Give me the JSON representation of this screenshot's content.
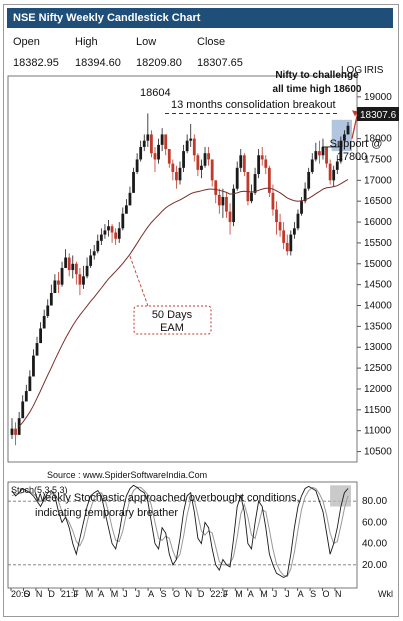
{
  "title": "NSE Nifty Weekly Candlestick Chart",
  "ohlc_header": {
    "labels": [
      "Open",
      "High",
      "Low",
      "Close"
    ],
    "values": [
      "18382.95",
      "18394.60",
      "18209.80",
      "18307.65"
    ]
  },
  "corner_labels": {
    "log": "LOG",
    "iris": "IRIS",
    "wkl": "Wkl"
  },
  "last_price_tag": "18307.6",
  "annotations": {
    "peak_value": "18604",
    "consolidation": "13 months consolidation breakout",
    "challenge_line1": "Nifty to challenge",
    "challenge_line2": "all time high 18600",
    "support_line1": "Support @",
    "support_line2": "17800",
    "ema_line1": "50 Days",
    "ema_line2": "EAM",
    "source": "Source : www.SpiderSoftwareIndia.Com",
    "stoch_label": "Stoch(5,3,5,3)",
    "stoch_note_line1": "Weekly Stochastic approached overbought conditions,",
    "stoch_note_line2": "indicating temporary breather"
  },
  "colors": {
    "up": "#1a1a1a",
    "down": "#c0392b",
    "ema": "#7b2c2c",
    "title_bg": "#1f4e79",
    "highlight": "#9db7d6",
    "arrow": "#c0392b"
  },
  "chart_data": {
    "type": "candlestick",
    "title": "NSE Nifty Weekly Candlestick Chart",
    "y_ticks": [
      10500,
      11000,
      11500,
      12000,
      12500,
      13000,
      13500,
      14000,
      14500,
      15000,
      15500,
      16000,
      16500,
      17000,
      17500,
      18000,
      18500,
      19000
    ],
    "ylim": [
      10250,
      19500
    ],
    "x_tick_labels": [
      "20:S",
      "O",
      "N",
      "D",
      "21:J",
      "F",
      "M",
      "A",
      "M",
      "J",
      "J",
      "A",
      "S",
      "O",
      "N",
      "D",
      "22:J",
      "F",
      "M",
      "A",
      "M",
      "J",
      "J",
      "A",
      "S",
      "O",
      "N"
    ],
    "weekly_close": [
      11050,
      10900,
      11300,
      11700,
      11950,
      12300,
      12800,
      13100,
      13450,
      13750,
      14000,
      14300,
      14600,
      14500,
      14900,
      15150,
      14850,
      15000,
      14750,
      14500,
      14700,
      14950,
      15200,
      15300,
      15550,
      15700,
      15800,
      15900,
      15750,
      15600,
      15850,
      16200,
      16400,
      16700,
      17200,
      17500,
      17800,
      17950,
      18100,
      17650,
      17500,
      17850,
      18100,
      17750,
      17400,
      17200,
      17000,
      17300,
      17700,
      17950,
      18000,
      17600,
      17250,
      17350,
      17650,
      17500,
      17000,
      16650,
      16400,
      16600,
      16250,
      16000,
      16800,
      17300,
      17600,
      17200,
      16500,
      16700,
      17150,
      17600,
      17500,
      17300,
      16700,
      16300,
      16000,
      15800,
      15500,
      15300,
      15700,
      15850,
      16200,
      16500,
      16800,
      17200,
      17500,
      17700,
      17600,
      17800,
      17400,
      17000,
      17250,
      17450,
      17950,
      18100,
      18307.65
    ],
    "weekly_high": [
      11300,
      11200,
      11450,
      11850,
      12100,
      12450,
      12950,
      13250,
      13600,
      13900,
      14150,
      14500,
      14750,
      14800,
      15050,
      15350,
      15250,
      15200,
      15050,
      14900,
      14950,
      15150,
      15350,
      15450,
      15700,
      15850,
      15950,
      16050,
      15950,
      15850,
      16000,
      16350,
      16550,
      16850,
      17300,
      17650,
      17950,
      18100,
      18604,
      18200,
      17800,
      18000,
      18250,
      18100,
      17700,
      17500,
      17350,
      17450,
      17850,
      18100,
      18350,
      18100,
      17650,
      17500,
      17800,
      17800,
      17500,
      17000,
      16800,
      16800,
      16700,
      16450,
      16900,
      17450,
      17750,
      17650,
      17200,
      16900,
      17300,
      17750,
      17800,
      17600,
      17350,
      16900,
      16500,
      16200,
      16000,
      15700,
      15800,
      16000,
      16300,
      16600,
      16950,
      17300,
      17650,
      17900,
      17950,
      18000,
      17800,
      17500,
      17350,
      17600,
      18050,
      18200,
      18394.6
    ],
    "weekly_low": [
      10800,
      10650,
      10900,
      11300,
      11700,
      11950,
      12300,
      12800,
      13100,
      13450,
      13700,
      14000,
      14300,
      14300,
      14450,
      14900,
      14700,
      14650,
      14500,
      14250,
      14400,
      14650,
      14900,
      15100,
      15250,
      15450,
      15600,
      15650,
      15500,
      15450,
      15500,
      15800,
      16200,
      16400,
      16700,
      17150,
      17450,
      17700,
      17800,
      17550,
      17200,
      17400,
      17700,
      17600,
      17300,
      17000,
      16800,
      16900,
      17200,
      17650,
      17800,
      17450,
      17100,
      17050,
      17300,
      17350,
      16850,
      16450,
      16200,
      16100,
      16100,
      15700,
      15900,
      16750,
      17200,
      17100,
      16400,
      16450,
      16650,
      17050,
      17350,
      17150,
      16600,
      16150,
      15700,
      15650,
      15350,
      15200,
      15200,
      15600,
      15800,
      16150,
      16450,
      16750,
      17150,
      17450,
      17400,
      17500,
      17300,
      16900,
      16850,
      17150,
      17400,
      17800,
      18209.8
    ],
    "ema_50": [
      null,
      null,
      11100,
      11200,
      11320,
      11450,
      11600,
      11780,
      11960,
      12150,
      12330,
      12510,
      12700,
      12880,
      13050,
      13220,
      13370,
      13520,
      13650,
      13770,
      13880,
      13990,
      14100,
      14200,
      14310,
      14420,
      14530,
      14640,
      14730,
      14820,
      14910,
      15010,
      15120,
      15230,
      15360,
      15490,
      15630,
      15760,
      15880,
      15990,
      16080,
      16170,
      16260,
      16340,
      16400,
      16450,
      16490,
      16530,
      16580,
      16630,
      16680,
      16710,
      16730,
      16750,
      16770,
      16790,
      16790,
      16780,
      16760,
      16740,
      16710,
      16670,
      16680,
      16700,
      16730,
      16740,
      16730,
      16720,
      16730,
      16760,
      16790,
      16810,
      16810,
      16790,
      16750,
      16700,
      16640,
      16580,
      16540,
      16510,
      16500,
      16510,
      16530,
      16570,
      16620,
      16680,
      16730,
      16790,
      16820,
      16830,
      16850,
      16870,
      16920,
      16970,
      17020
    ],
    "stoch_ticks": [
      20,
      40,
      60,
      80
    ],
    "stoch_k": [
      90,
      85,
      88,
      92,
      90,
      88,
      85,
      80,
      75,
      82,
      88,
      90,
      85,
      70,
      60,
      65,
      55,
      40,
      30,
      45,
      60,
      75,
      85,
      88,
      90,
      85,
      70,
      55,
      40,
      35,
      50,
      70,
      85,
      92,
      95,
      93,
      90,
      88,
      80,
      60,
      40,
      35,
      55,
      50,
      30,
      20,
      25,
      45,
      70,
      85,
      88,
      70,
      45,
      40,
      60,
      55,
      35,
      20,
      15,
      25,
      20,
      18,
      45,
      75,
      85,
      70,
      40,
      35,
      60,
      80,
      75,
      55,
      30,
      20,
      12,
      10,
      8,
      10,
      30,
      55,
      75,
      85,
      92,
      94,
      92,
      90,
      80,
      70,
      50,
      30,
      40,
      55,
      75,
      88,
      92
    ],
    "stoch_d": [
      85,
      87,
      87,
      88,
      90,
      89,
      87,
      84,
      80,
      80,
      83,
      87,
      87,
      80,
      70,
      65,
      60,
      52,
      42,
      38,
      45,
      60,
      73,
      83,
      87,
      88,
      82,
      70,
      55,
      43,
      42,
      52,
      68,
      82,
      90,
      93,
      93,
      90,
      86,
      76,
      60,
      45,
      43,
      47,
      45,
      33,
      25,
      30,
      47,
      67,
      81,
      81,
      67,
      52,
      48,
      52,
      50,
      37,
      23,
      20,
      20,
      21,
      28,
      46,
      68,
      77,
      65,
      48,
      45,
      58,
      72,
      70,
      53,
      35,
      21,
      14,
      10,
      9,
      16,
      32,
      53,
      72,
      84,
      90,
      93,
      92,
      87,
      80,
      67,
      50,
      40,
      42,
      57,
      73,
      85
    ]
  }
}
